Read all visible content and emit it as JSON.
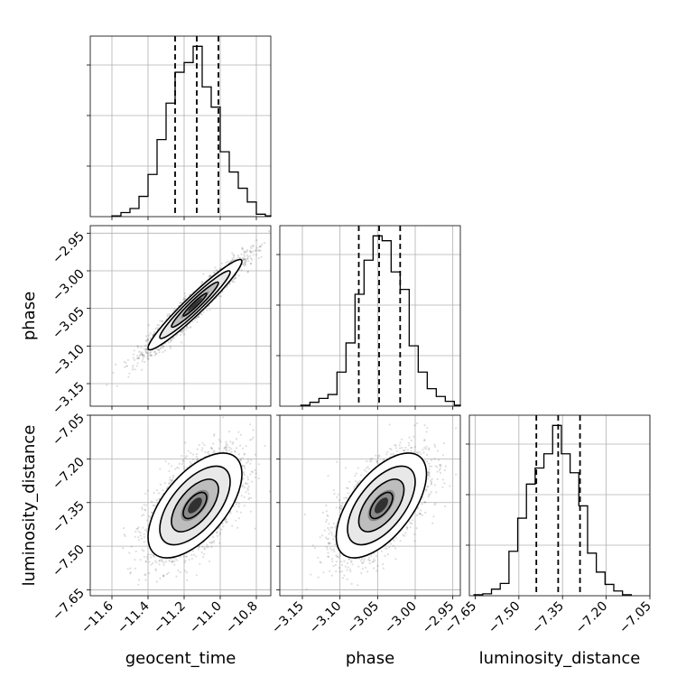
{
  "chart_data": {
    "type": "corner",
    "parameters": [
      {
        "name": "geocent_time",
        "label": "geocent_time",
        "range": [
          -11.72,
          -10.72
        ],
        "ticks": [
          -11.6,
          -11.4,
          -11.2,
          -11.0,
          -10.8
        ],
        "tick_labels": [
          "−11.6",
          "−11.4",
          "−11.2",
          "−11.0",
          "−10.8"
        ],
        "quantiles": [
          -11.25,
          -11.13,
          -11.01
        ],
        "histogram": {
          "bin_edges": [
            -11.6,
            -11.55,
            -11.5,
            -11.45,
            -11.4,
            -11.35,
            -11.3,
            -11.25,
            -11.2,
            -11.15,
            -11.1,
            -11.05,
            -11.0,
            -10.95,
            -10.9,
            -10.85,
            -10.8,
            -10.75,
            -10.72
          ],
          "counts": [
            1,
            5,
            10,
            25,
            52,
            95,
            140,
            178,
            190,
            210,
            160,
            135,
            80,
            55,
            35,
            18,
            3,
            1
          ]
        }
      },
      {
        "name": "phase",
        "label": "phase",
        "range": [
          -3.18,
          -2.94
        ],
        "ticks": [
          -3.15,
          -3.1,
          -3.05,
          -3.0,
          -2.95
        ],
        "tick_labels": [
          "−3.15",
          "−3.10",
          "−3.05",
          "−3.00",
          "−2.95"
        ],
        "quantiles": [
          -3.075,
          -3.048,
          -3.02
        ],
        "histogram": {
          "bin_edges": [
            -3.152,
            -3.14,
            -3.128,
            -3.116,
            -3.104,
            -3.092,
            -3.08,
            -3.068,
            -3.056,
            -3.044,
            -3.032,
            -3.02,
            -3.008,
            -2.996,
            -2.984,
            -2.972,
            -2.96,
            -2.948,
            -2.94
          ],
          "counts": [
            1,
            4,
            8,
            12,
            35,
            65,
            115,
            150,
            175,
            170,
            138,
            120,
            62,
            35,
            18,
            10,
            5,
            1
          ]
        }
      },
      {
        "name": "luminosity_distance",
        "label": "luminosity_distance",
        "range": [
          -7.67,
          -7.05
        ],
        "ticks": [
          -7.65,
          -7.5,
          -7.35,
          -7.2,
          -7.05
        ],
        "tick_labels": [
          "−7.65",
          "−7.50",
          "−7.35",
          "−7.20",
          "−7.05"
        ],
        "quantiles": [
          -7.44,
          -7.365,
          -7.29
        ],
        "histogram": {
          "bin_edges": [
            -7.654,
            -7.624,
            -7.594,
            -7.564,
            -7.534,
            -7.504,
            -7.474,
            -7.444,
            -7.414,
            -7.384,
            -7.354,
            -7.324,
            -7.294,
            -7.264,
            -7.234,
            -7.204,
            -7.174,
            -7.144,
            -7.114
          ],
          "counts": [
            1,
            2,
            7,
            13,
            47,
            82,
            118,
            135,
            150,
            180,
            150,
            130,
            95,
            45,
            25,
            12,
            5,
            1
          ]
        }
      }
    ],
    "panels_2d": [
      {
        "x": "geocent_time",
        "y": "phase",
        "center": [
          -11.14,
          -3.045
        ],
        "std": [
          0.13,
          0.03
        ],
        "correlation": 0.96,
        "contour_levels": [
          "0.5",
          "1.0",
          "1.5",
          "2.0"
        ]
      },
      {
        "x": "geocent_time",
        "y": "luminosity_distance",
        "center": [
          -11.14,
          -7.36
        ],
        "std": [
          0.13,
          0.09
        ],
        "correlation": 0.6
      },
      {
        "x": "phase",
        "y": "luminosity_distance",
        "center": [
          -3.045,
          -7.36
        ],
        "std": [
          0.03,
          0.09
        ],
        "correlation": 0.6
      }
    ],
    "grid": true
  }
}
